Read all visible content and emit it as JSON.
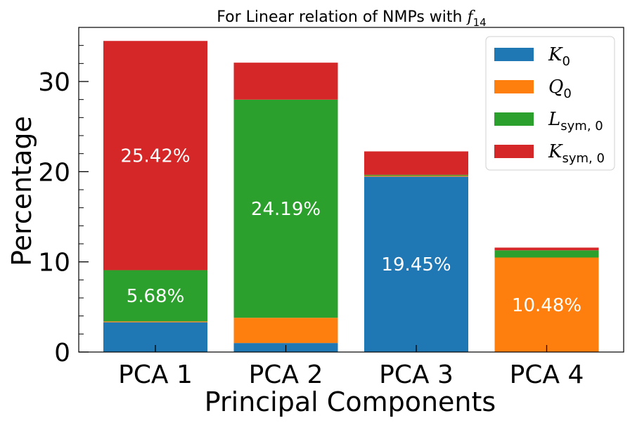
{
  "chart_data": {
    "type": "bar",
    "stacked": true,
    "title": "For Linear relation of NMPs with",
    "title_math": "f",
    "title_math_sub": "14",
    "xlabel": "Principal Components",
    "ylabel": "Percentage",
    "categories": [
      "PCA 1",
      "PCA 2",
      "PCA 3",
      "PCA 4"
    ],
    "ylim": [
      0,
      36
    ],
    "yticks": [
      0,
      10,
      20,
      30
    ],
    "legend_position": "top-right",
    "series": [
      {
        "name": "K",
        "sub": "0",
        "color": "#1f77b4",
        "values": [
          3.3,
          1.0,
          19.45,
          0.0
        ]
      },
      {
        "name": "Q",
        "sub": "0",
        "color": "#ff7f0e",
        "values": [
          0.1,
          2.8,
          0.1,
          10.48
        ]
      },
      {
        "name": "L",
        "sub": "sym, 0",
        "color": "#2ca02c",
        "values": [
          5.68,
          24.19,
          0.1,
          0.8
        ]
      },
      {
        "name": "K",
        "sub": "sym, 0",
        "color": "#d62728",
        "values": [
          25.42,
          4.1,
          2.6,
          0.3
        ]
      }
    ],
    "data_labels": [
      {
        "category": "PCA 1",
        "series": 3,
        "text": "25.42%"
      },
      {
        "category": "PCA 1",
        "series": 2,
        "text": "5.68%"
      },
      {
        "category": "PCA 2",
        "series": 2,
        "text": "24.19%"
      },
      {
        "category": "PCA 3",
        "series": 0,
        "text": "19.45%"
      },
      {
        "category": "PCA 4",
        "series": 1,
        "text": "10.48%"
      }
    ]
  }
}
